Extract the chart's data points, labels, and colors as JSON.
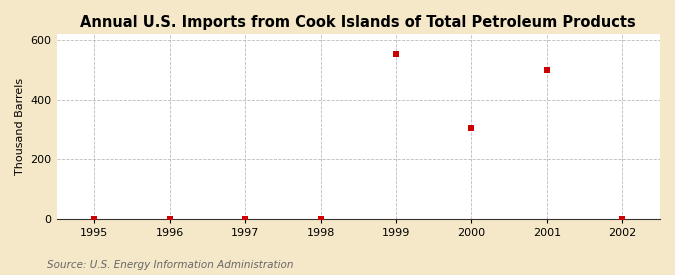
{
  "title": "Annual U.S. Imports from Cook Islands of Total Petroleum Products",
  "ylabel": "Thousand Barrels",
  "source": "Source: U.S. Energy Information Administration",
  "x_years": [
    1995,
    1996,
    1997,
    1998,
    1999,
    2000,
    2001,
    2002
  ],
  "y_values": [
    0,
    0,
    0,
    0,
    553,
    304,
    500,
    0
  ],
  "xlim": [
    1994.5,
    2002.5
  ],
  "ylim": [
    0,
    620
  ],
  "yticks": [
    0,
    200,
    400,
    600
  ],
  "xticks": [
    1995,
    1996,
    1997,
    1998,
    1999,
    2000,
    2001,
    2002
  ],
  "figure_bg_color": "#f5e8c8",
  "plot_bg_color": "#ffffff",
  "marker_color": "#cc0000",
  "marker_size": 18,
  "grid_color": "#aaaaaa",
  "title_fontsize": 10.5,
  "label_fontsize": 8,
  "tick_fontsize": 8,
  "source_fontsize": 7.5,
  "source_color": "#666666"
}
